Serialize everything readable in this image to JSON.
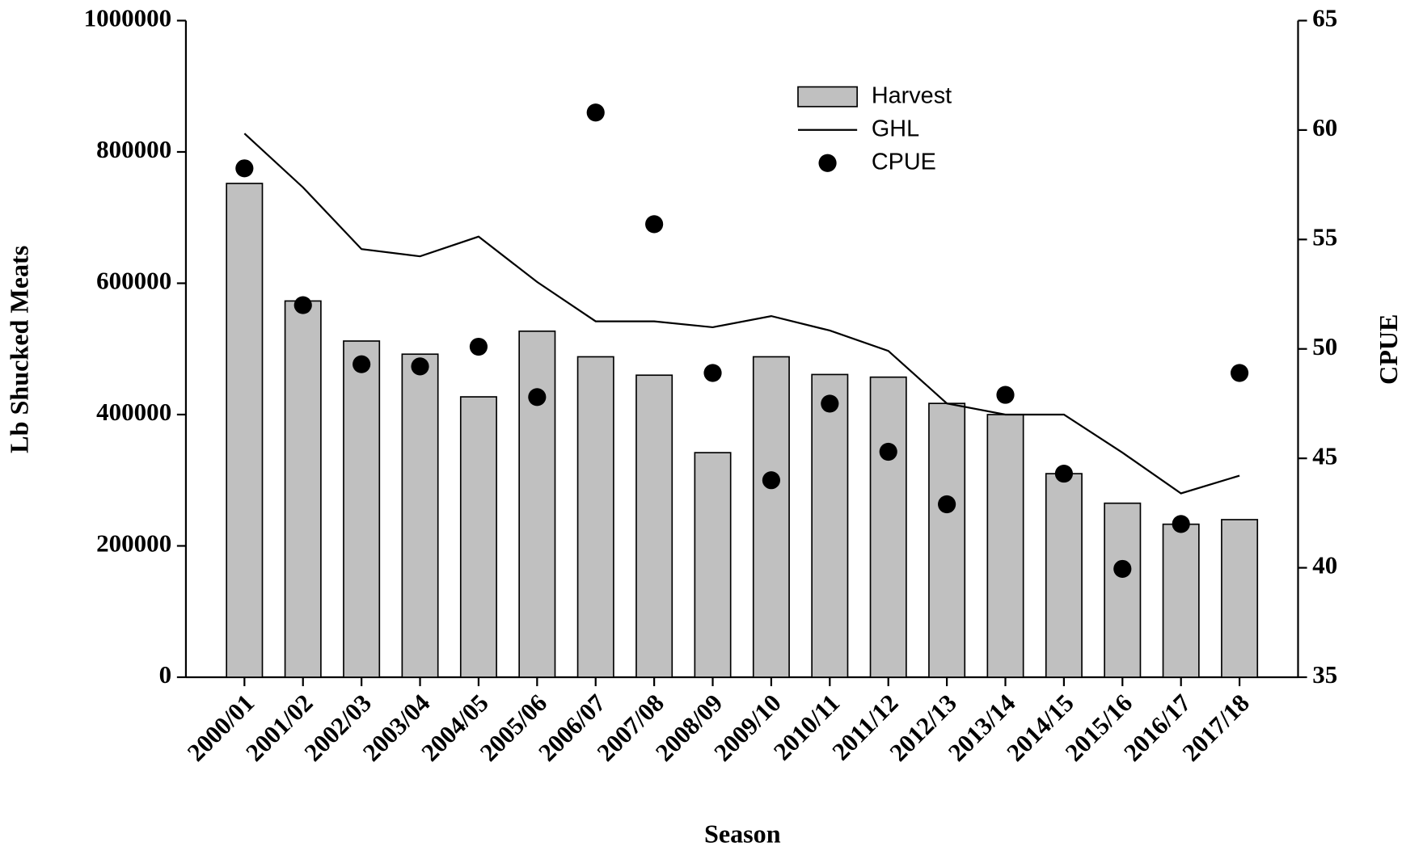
{
  "chart_data": {
    "type": "bar",
    "x_label": "Season",
    "y_label": "Lb Shucked Meats",
    "y2_label": "CPUE",
    "categories": [
      "2000/01",
      "2001/02",
      "2002/03",
      "2003/04",
      "2004/05",
      "2005/06",
      "2006/07",
      "2007/08",
      "2008/09",
      "2009/10",
      "2010/11",
      "2011/12",
      "2012/13",
      "2013/14",
      "2014/15",
      "2015/16",
      "2016/17",
      "2017/18"
    ],
    "series": [
      {
        "name": "Harvest",
        "type": "bar",
        "color": "#c0c0c0",
        "axis": "y",
        "values": [
          752000,
          573000,
          512000,
          492000,
          427000,
          527000,
          488000,
          460000,
          342000,
          488000,
          461000,
          457000,
          417000,
          400000,
          310000,
          265000,
          233000,
          240000
        ]
      },
      {
        "name": "GHL",
        "type": "line",
        "color": "#000000",
        "axis": "y",
        "values": [
          828000,
          746000,
          652000,
          641000,
          671000,
          602000,
          542000,
          542000,
          533000,
          550000,
          528000,
          497000,
          417000,
          400000,
          400000,
          342000,
          280000,
          307000
        ]
      },
      {
        "name": "CPUE",
        "type": "scatter",
        "color": "#000000",
        "axis": "y2",
        "values": [
          58.25,
          52.0,
          49.3,
          49.2,
          50.1,
          47.8,
          60.8,
          55.7,
          48.9,
          44.0,
          47.5,
          45.3,
          42.9,
          47.9,
          44.3,
          39.95,
          42.0,
          48.9
        ]
      }
    ],
    "ylim": [
      0,
      1000000
    ],
    "yticks": [
      0,
      200000,
      400000,
      600000,
      800000,
      1000000
    ],
    "y2lim": [
      35,
      65
    ],
    "y2ticks": [
      35,
      40,
      45,
      50,
      55,
      60,
      65
    ],
    "grid": false,
    "legend": "top-center"
  }
}
